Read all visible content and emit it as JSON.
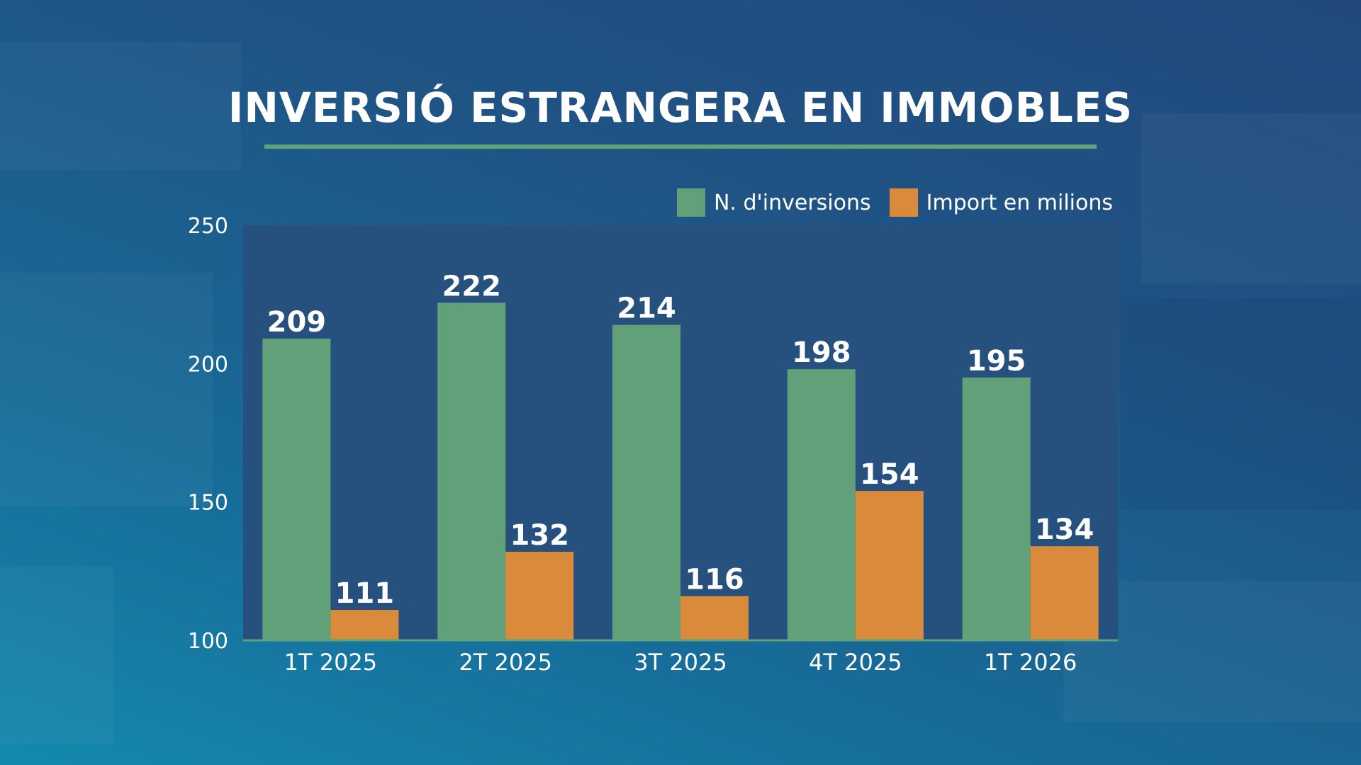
{
  "title": "INVERSIÓ ESTRANGERA EN IMMOBLES",
  "legend": {
    "series1": "N. d'inversions",
    "series2": "Import en milions"
  },
  "colors": {
    "series1": "#62a07a",
    "series2": "#d98a3a",
    "plot_bg": "#26507e",
    "axis_line": "#5fa37a"
  },
  "chart_data": {
    "type": "bar",
    "title": "INVERSIÓ ESTRANGERA EN IMMOBLES",
    "categories": [
      "1T 2025",
      "2T 2025",
      "3T 2025",
      "4T 2025",
      "1T 2026"
    ],
    "series": [
      {
        "name": "N. d'inversions",
        "values": [
          209,
          222,
          214,
          198,
          195
        ]
      },
      {
        "name": "Import en milions",
        "values": [
          111,
          132,
          116,
          154,
          134
        ]
      }
    ],
    "ylim": [
      100,
      250
    ],
    "yticks": [
      100,
      150,
      200,
      250
    ],
    "legend_position": "top-right",
    "grid": false
  }
}
